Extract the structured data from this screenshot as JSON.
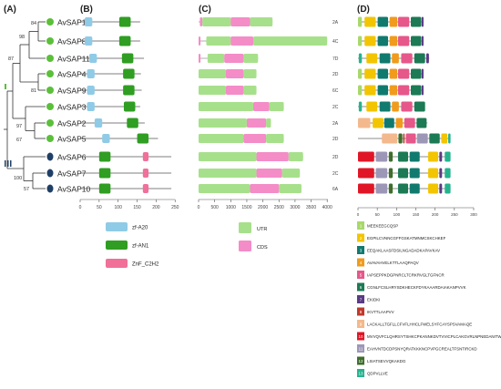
{
  "panel_labels": [
    "(A)",
    "(B)",
    "(C)",
    "(D)"
  ],
  "tree": {
    "genes": [
      "AvSAP1",
      "AvSAP8",
      "AvSAP11",
      "AvSAP4",
      "AvSAP9",
      "AvSAP3",
      "AvSAP2",
      "AvSAP5",
      "AvSAP6",
      "AvSAP7",
      "AvSAP10"
    ],
    "bootstrap": [
      "84",
      "98",
      "87",
      "81",
      "97",
      "67",
      "100",
      "57"
    ],
    "groups": [
      "green",
      "green",
      "green",
      "green",
      "green",
      "green",
      "green",
      "green",
      "navy",
      "navy",
      "navy"
    ],
    "colors": {
      "group1": "#5bbf3a",
      "group2": "#1f3f66"
    }
  },
  "domains_panel": {
    "axis_ticks": [
      "0",
      "50",
      "100",
      "150",
      "200",
      "250"
    ],
    "legend": [
      {
        "label": "zf-A20",
        "color": "#8fcbe6"
      },
      {
        "label": "zf-AN1",
        "color": "#2f9e22"
      },
      {
        "label": "ZnF_C2H2",
        "color": "#f0709a"
      }
    ]
  },
  "gene_structure": {
    "axis_ticks": [
      "0",
      "500",
      "1000",
      "1500",
      "2000",
      "2500",
      "3000",
      "3500",
      "4000"
    ],
    "chromosomes": [
      "2A",
      "4C",
      "7D",
      "2D",
      "6C",
      "2C",
      "2A",
      "2D",
      "2D",
      "2C",
      "6A"
    ],
    "legend": [
      {
        "label": "UTR",
        "color": "#a7e08b"
      },
      {
        "label": "CDS",
        "color": "#f48cc7"
      }
    ]
  },
  "motifs": {
    "axis_ticks": [
      "0",
      "50",
      "100",
      "150",
      "200",
      "250",
      "300"
    ],
    "list": [
      {
        "num": "1",
        "seq": "MEEKEEGCQSP",
        "color": "#a8d86b"
      },
      {
        "num": "2",
        "seq": "EGPILCVNNCGFFGSKATMNMCSKCHKEF",
        "color": "#f2c500"
      },
      {
        "num": "3",
        "seq": "EEQAKLAASFDSILNGADADKAPAVKAV",
        "color": "#117a6f"
      },
      {
        "num": "4",
        "seq": "AVAVAHVELKTTLAAQPAQV",
        "color": "#f09b1c"
      },
      {
        "num": "5",
        "seq": "IAPSEPPKDGPNRCLTCRKRVGLTGFNCR",
        "color": "#e6578a"
      },
      {
        "num": "6",
        "seq": "CGNLFCSLHRYSDKHECKFDYKAAARDAIAKANPVVK",
        "color": "#1c7a55"
      },
      {
        "num": "7",
        "seq": "EKIDKI",
        "color": "#5a3a86"
      },
      {
        "num": "8",
        "seq": "IKVTTLAAPVV",
        "color": "#c0392b"
      },
      {
        "num": "9",
        "seq": "LACKALLTGFLLCFVFLHHCLFWELSYFCAYSPSVAMAQE",
        "color": "#f3b98c"
      },
      {
        "num": "10",
        "seq": "MVVQVFCLQHRSYTSHKCPKANNKDVTVVICPLCAKGVRLNPNEDANITW",
        "color": "#e01626"
      },
      {
        "num": "11",
        "seq": "EAHVNTDCDPSNYQRATKKKNCPVPGCREALTFSNTIRCKD",
        "color": "#9d97b7"
      },
      {
        "num": "12",
        "seq": "LSIATSEVVQKAKDG",
        "color": "#3f6e2c"
      },
      {
        "num": "13",
        "seq": "QDPVLLVE",
        "color": "#25b38e"
      }
    ]
  }
}
